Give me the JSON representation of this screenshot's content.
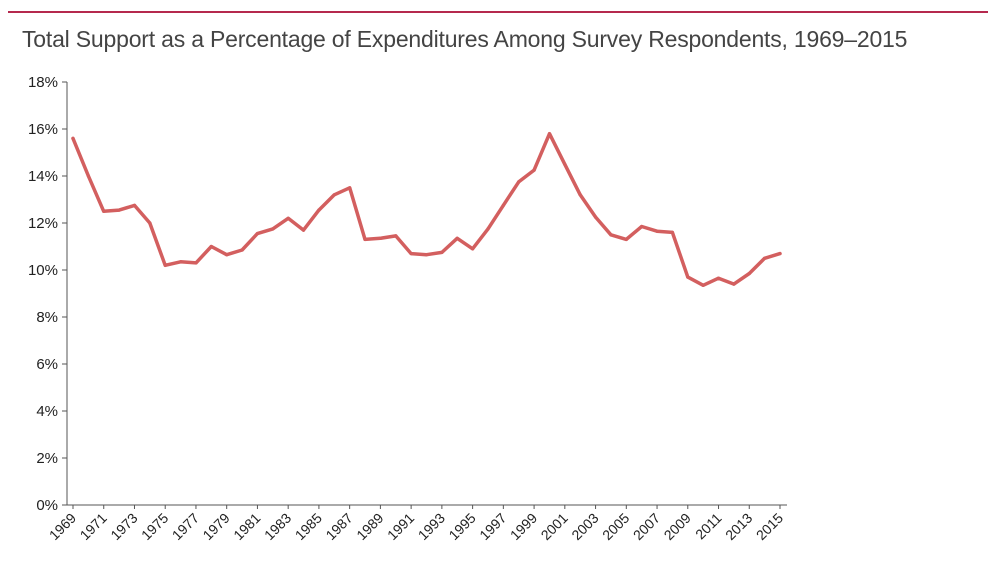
{
  "chart_data": {
    "type": "line",
    "title": "Total Support as a Percentage of Expenditures Among Survey Respondents, 1969–2015",
    "xlabel": "",
    "ylabel": "",
    "ylim": [
      0,
      18
    ],
    "y_ticks": [
      "0%",
      "2%",
      "4%",
      "6%",
      "8%",
      "10%",
      "12%",
      "14%",
      "16%",
      "18%"
    ],
    "x_ticks": [
      "1969",
      "1971",
      "1973",
      "1975",
      "1977",
      "1979",
      "1981",
      "1983",
      "1985",
      "1987",
      "1989",
      "1991",
      "1993",
      "1995",
      "1997",
      "1999",
      "2001",
      "2003",
      "2005",
      "2007",
      "2009",
      "2011",
      "2013",
      "2015"
    ],
    "grid": false,
    "legend": "none",
    "colors": {
      "line": "#d35f5f",
      "axis": "#555555",
      "title_rule": "#b5294e"
    },
    "series": [
      {
        "x": [
          1969,
          1970,
          1971,
          1972,
          1973,
          1974,
          1975,
          1976,
          1977,
          1978,
          1979,
          1980,
          1981,
          1982,
          1983,
          1984,
          1985,
          1986,
          1987,
          1988,
          1989,
          1990,
          1991,
          1992,
          1993,
          1994,
          1995,
          1996,
          1997,
          1998,
          1999,
          2000,
          2001,
          2002,
          2003,
          2004,
          2005,
          2006,
          2007,
          2008,
          2009,
          2010,
          2011,
          2012,
          2013,
          2014,
          2015
        ],
        "values": [
          15.6,
          14.0,
          12.5,
          12.55,
          12.75,
          12.0,
          10.2,
          10.35,
          10.3,
          11.0,
          10.65,
          10.85,
          11.55,
          11.75,
          12.2,
          11.7,
          12.55,
          13.2,
          13.5,
          11.3,
          11.35,
          11.45,
          10.7,
          10.65,
          10.75,
          11.35,
          10.9,
          11.75,
          12.75,
          13.75,
          14.25,
          15.8,
          14.5,
          13.2,
          12.25,
          11.5,
          11.3,
          11.85,
          11.65,
          11.6,
          9.7,
          9.35,
          9.65,
          9.4,
          9.85,
          10.5,
          10.7
        ]
      }
    ]
  }
}
